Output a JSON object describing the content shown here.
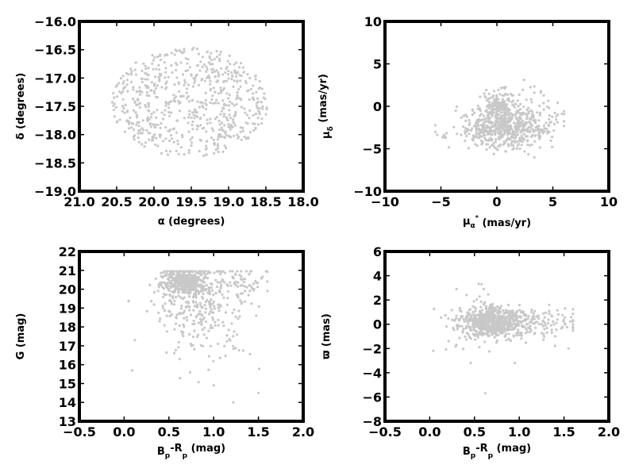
{
  "chart_data": [
    {
      "type": "scatter",
      "panel": "top-left",
      "xlabel": "α (degrees)",
      "ylabel": "δ (degrees)",
      "xlim": [
        21.0,
        18.0
      ],
      "ylim": [
        -19.0,
        -16.0
      ],
      "xticks": [
        "21.0",
        "20.5",
        "20.0",
        "19.5",
        "19.0",
        "18.5",
        "18.0"
      ],
      "yticks": [
        "−19.0",
        "−18.5",
        "−18.0",
        "−17.5",
        "−17.0",
        "−16.5",
        "−16.0"
      ],
      "x_inverted": true,
      "point_color": "#c8c8c8",
      "cloud": {
        "shape": "ellipse",
        "x_center": 19.52,
        "y_center": -17.43,
        "x_radius": 1.05,
        "y_radius": 0.97,
        "n": 650,
        "seed": 11
      }
    },
    {
      "type": "scatter",
      "panel": "top-right",
      "xlabel": "μα* (mas/yr)",
      "ylabel": "μδ (mas/yr)",
      "xlim": [
        -10,
        10
      ],
      "ylim": [
        -10,
        10
      ],
      "xticks": [
        "−10",
        "−5",
        "0",
        "5",
        "10"
      ],
      "yticks": [
        "−10",
        "−5",
        "0",
        "5",
        "10"
      ],
      "point_color": "#c8c8c8",
      "clusters": [
        {
          "x_center": 0.5,
          "y_center": -2.6,
          "x_spread": 2.0,
          "y_spread": 1.2,
          "n": 520,
          "seed": 21
        },
        {
          "x_center": 0.1,
          "y_center": 0.0,
          "x_spread": 0.6,
          "y_spread": 0.9,
          "n": 140,
          "seed": 22
        },
        {
          "x_center": 2.5,
          "y_center": -1.5,
          "x_spread": 1.6,
          "y_spread": 1.5,
          "n": 120,
          "seed": 23
        }
      ],
      "x_range": [
        -5.5,
        6.0
      ],
      "y_range": [
        -6.0,
        4.5
      ]
    },
    {
      "type": "scatter",
      "panel": "bottom-left",
      "xlabel": "Bp-Rp (mag)",
      "ylabel": "G (mag)",
      "xlim": [
        -0.5,
        2.0
      ],
      "ylim": [
        13,
        22
      ],
      "xticks": [
        "−0.5",
        "0.0",
        "0.5",
        "1.0",
        "1.5",
        "2.0"
      ],
      "yticks": [
        "13",
        "14",
        "15",
        "16",
        "17",
        "18",
        "19",
        "20",
        "21",
        "22"
      ],
      "point_color": "#c8c8c8",
      "clusters": [
        {
          "x_center": 0.68,
          "y_center": 20.4,
          "x_spread": 0.13,
          "y_spread": 0.35,
          "n": 420,
          "seed": 31
        },
        {
          "x_center": 0.75,
          "y_center": 19.4,
          "x_spread": 0.28,
          "y_spread": 1.0,
          "n": 200,
          "seed": 32
        },
        {
          "x_center": 1.0,
          "y_center": 18.0,
          "x_spread": 0.22,
          "y_spread": 1.3,
          "n": 90,
          "seed": 33
        },
        {
          "x_center": 1.3,
          "y_center": 20.4,
          "x_spread": 0.18,
          "y_spread": 0.45,
          "n": 60,
          "seed": 34
        }
      ],
      "x_range": [
        0.05,
        1.6
      ],
      "y_range": [
        13.9,
        20.95
      ],
      "extra_points": [
        [
          0.09,
          15.7
        ],
        [
          0.62,
          16.3
        ],
        [
          1.0,
          14.9
        ],
        [
          1.22,
          14.0
        ],
        [
          1.5,
          14.5
        ],
        [
          0.12,
          17.3
        ]
      ]
    },
    {
      "type": "scatter",
      "panel": "bottom-right",
      "xlabel": "Bp-Rp (mag)",
      "ylabel": "ϖ (mas)",
      "xlim": [
        -0.5,
        2.0
      ],
      "ylim": [
        -8,
        6
      ],
      "xticks": [
        "−0.5",
        "0.0",
        "0.5",
        "1.0",
        "1.5",
        "2.0"
      ],
      "yticks": [
        "−8",
        "−6",
        "−4",
        "−2",
        "0",
        "2",
        "4",
        "6"
      ],
      "point_color": "#c8c8c8",
      "clusters": [
        {
          "x_center": 0.7,
          "y_center": 0.2,
          "x_spread": 0.16,
          "y_spread": 0.6,
          "n": 480,
          "seed": 41
        },
        {
          "x_center": 1.0,
          "y_center": 0.1,
          "x_spread": 0.35,
          "y_spread": 0.7,
          "n": 220,
          "seed": 42
        },
        {
          "x_center": 0.5,
          "y_center": 0.3,
          "x_spread": 0.2,
          "y_spread": 1.3,
          "n": 90,
          "seed": 43
        }
      ],
      "x_range": [
        0.0,
        1.6
      ],
      "y_range": [
        -5.8,
        3.5
      ],
      "extra_points": [
        [
          0.62,
          -5.7
        ],
        [
          0.58,
          3.3
        ],
        [
          0.04,
          -2.2
        ],
        [
          0.3,
          2.9
        ],
        [
          0.95,
          -3.2
        ],
        [
          1.55,
          -2.0
        ]
      ]
    }
  ]
}
